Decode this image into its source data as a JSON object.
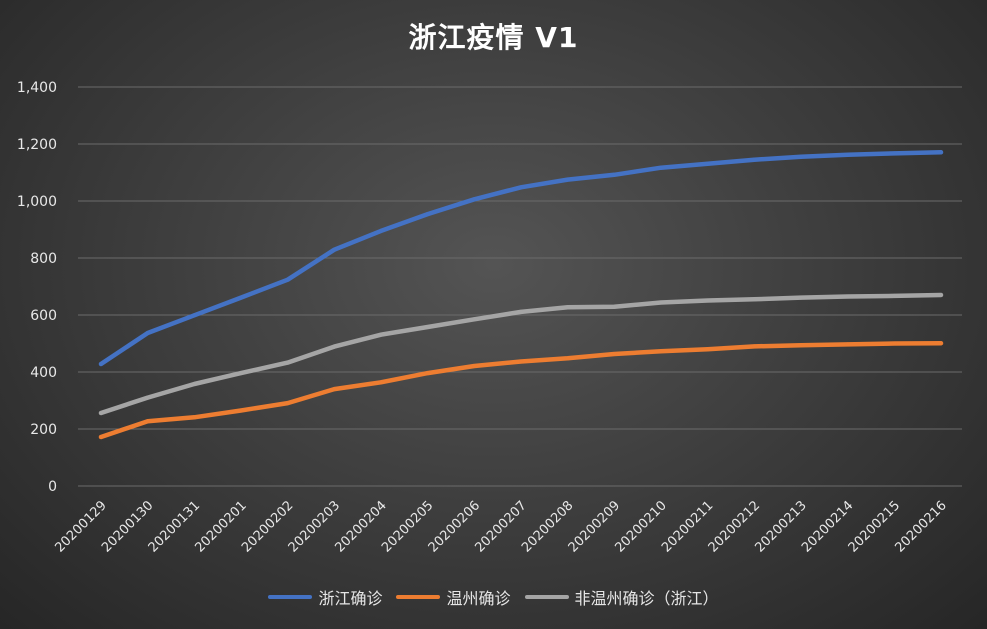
{
  "chart_data": {
    "type": "line",
    "title": "浙江疫情 V1",
    "xlabel": "",
    "ylabel": "",
    "ylim": [
      0,
      1400
    ],
    "yticks": [
      "0",
      "200",
      "400",
      "600",
      "800",
      "1,000",
      "1,200",
      "1,400"
    ],
    "ytick_values": [
      0,
      200,
      400,
      600,
      800,
      1000,
      1200,
      1400
    ],
    "grid": true,
    "legend_position": "bottom",
    "categories": [
      "20200129",
      "20200130",
      "20200131",
      "20200201",
      "20200202",
      "20200203",
      "20200204",
      "20200205",
      "20200206",
      "20200207",
      "20200208",
      "20200209",
      "20200210",
      "20200211",
      "20200212",
      "20200213",
      "20200214",
      "20200215",
      "20200216"
    ],
    "series": [
      {
        "name": "浙江确诊",
        "color": "#4472c4",
        "values": [
          428,
          537,
          599,
          661,
          724,
          829,
          895,
          954,
          1006,
          1048,
          1075,
          1092,
          1117,
          1131,
          1145,
          1155,
          1162,
          1167,
          1171
        ]
      },
      {
        "name": "温州确诊",
        "color": "#ed7d31",
        "values": [
          172,
          227,
          241,
          265,
          291,
          340,
          364,
          396,
          421,
          437,
          448,
          463,
          473,
          480,
          490,
          494,
          497,
          500,
          501
        ]
      },
      {
        "name": "非温州确诊（浙江）",
        "color": "#a5a5a5",
        "values": [
          256,
          310,
          358,
          396,
          433,
          489,
          531,
          558,
          585,
          611,
          627,
          629,
          644,
          651,
          655,
          661,
          665,
          667,
          670
        ]
      }
    ]
  }
}
